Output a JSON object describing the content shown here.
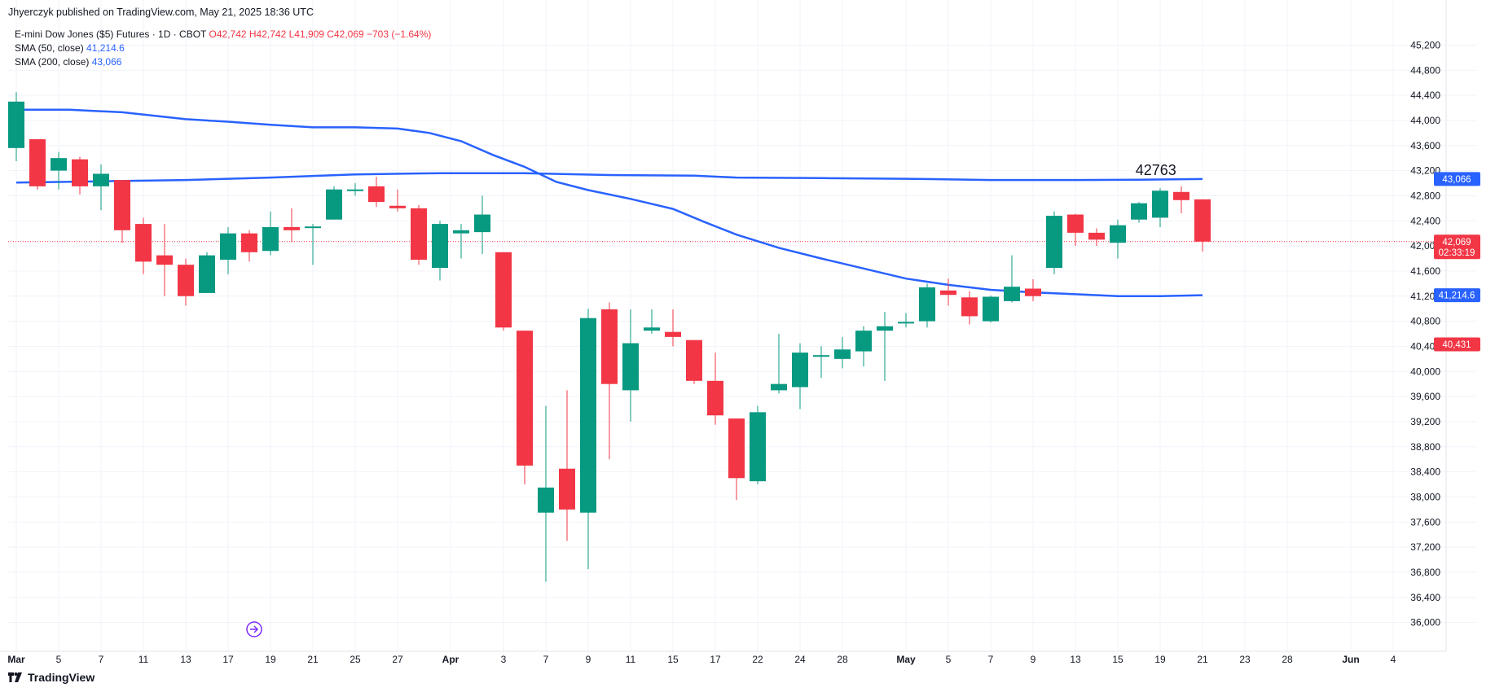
{
  "header": {
    "published_line": "Jhyerczyk published on TradingView.com, May 21, 2025 18:36 UTC"
  },
  "legend": {
    "symbol": "E-mini Dow Jones ($5) Futures · 1D · CBOT",
    "ohlc": "O42,742 H42,742 L41,909 C42,069 −703 (−1.64%)",
    "sma50_label": "SMA (50, close)",
    "sma50_value": "41,214.6",
    "sma200_label": "SMA (200, close)",
    "sma200_value": "43,066"
  },
  "footer": {
    "brand": "TradingView"
  },
  "colors": {
    "up": "#089981",
    "down": "#f23645",
    "sma": "#2962ff",
    "grid": "#f0f3fa",
    "axis_text": "#131722"
  },
  "chart_data": {
    "type": "candlestick",
    "title": "E-mini Dow Jones ($5) Futures · 1D · CBOT",
    "ylim": [
      35800,
      45400
    ],
    "y_ticks": [
      36000,
      36400,
      36800,
      37200,
      37600,
      38000,
      38400,
      38800,
      39200,
      39600,
      40000,
      40400,
      40800,
      41200,
      41600,
      42000,
      42400,
      42800,
      43200,
      43600,
      44000,
      44400,
      44800,
      45200
    ],
    "y_tick_labels": [
      "36,000",
      "36,400",
      "36,800",
      "37,200",
      "37,600",
      "38,000",
      "38,400",
      "38,800",
      "39,200",
      "39,600",
      "40,000",
      "40,400",
      "40,800",
      "41,200",
      "41,600",
      "42,000",
      "42,400",
      "42,800",
      "43,200",
      "43,600",
      "44,000",
      "44,400",
      "44,800",
      "45,200"
    ],
    "x_ticks": [
      {
        "label": "Mar",
        "bar": 0,
        "bold": true
      },
      {
        "label": "5",
        "bar": 2
      },
      {
        "label": "7",
        "bar": 4
      },
      {
        "label": "11",
        "bar": 6
      },
      {
        "label": "13",
        "bar": 8
      },
      {
        "label": "17",
        "bar": 10
      },
      {
        "label": "19",
        "bar": 12
      },
      {
        "label": "21",
        "bar": 14
      },
      {
        "label": "25",
        "bar": 16
      },
      {
        "label": "27",
        "bar": 18
      },
      {
        "label": "Apr",
        "bar": 20.5,
        "bold": true
      },
      {
        "label": "3",
        "bar": 23
      },
      {
        "label": "7",
        "bar": 25
      },
      {
        "label": "9",
        "bar": 27
      },
      {
        "label": "11",
        "bar": 29
      },
      {
        "label": "15",
        "bar": 31
      },
      {
        "label": "17",
        "bar": 33
      },
      {
        "label": "22",
        "bar": 35
      },
      {
        "label": "24",
        "bar": 37
      },
      {
        "label": "28",
        "bar": 39
      },
      {
        "label": "May",
        "bar": 42,
        "bold": true
      },
      {
        "label": "5",
        "bar": 44
      },
      {
        "label": "7",
        "bar": 46
      },
      {
        "label": "9",
        "bar": 48
      },
      {
        "label": "13",
        "bar": 50
      },
      {
        "label": "15",
        "bar": 52
      },
      {
        "label": "19",
        "bar": 54
      },
      {
        "label": "21",
        "bar": 56
      },
      {
        "label": "23",
        "bar": 58
      },
      {
        "label": "28",
        "bar": 60
      },
      {
        "label": "Jun",
        "bar": 63,
        "bold": true
      },
      {
        "label": "4",
        "bar": 65
      }
    ],
    "candles": [
      {
        "o": 43560,
        "h": 44450,
        "l": 43350,
        "c": 44300
      },
      {
        "o": 43700,
        "h": 43700,
        "l": 42900,
        "c": 42950
      },
      {
        "o": 43200,
        "h": 43500,
        "l": 42900,
        "c": 43400
      },
      {
        "o": 43380,
        "h": 43420,
        "l": 42820,
        "c": 42950
      },
      {
        "o": 42950,
        "h": 43300,
        "l": 42570,
        "c": 43150
      },
      {
        "o": 43050,
        "h": 43050,
        "l": 42050,
        "c": 42250
      },
      {
        "o": 42350,
        "h": 42450,
        "l": 41550,
        "c": 41750
      },
      {
        "o": 41850,
        "h": 42350,
        "l": 41200,
        "c": 41700
      },
      {
        "o": 41700,
        "h": 41800,
        "l": 41050,
        "c": 41200
      },
      {
        "o": 41250,
        "h": 41900,
        "l": 41250,
        "c": 41850
      },
      {
        "o": 41780,
        "h": 42300,
        "l": 41550,
        "c": 42200
      },
      {
        "o": 42200,
        "h": 42250,
        "l": 41750,
        "c": 41900
      },
      {
        "o": 41920,
        "h": 42550,
        "l": 41850,
        "c": 42300
      },
      {
        "o": 42300,
        "h": 42600,
        "l": 42060,
        "c": 42250
      },
      {
        "o": 42300,
        "h": 42350,
        "l": 41700,
        "c": 42310
      },
      {
        "o": 42420,
        "h": 42950,
        "l": 42420,
        "c": 42900
      },
      {
        "o": 42890,
        "h": 43000,
        "l": 42800,
        "c": 42900
      },
      {
        "o": 42950,
        "h": 43100,
        "l": 42620,
        "c": 42700
      },
      {
        "o": 42640,
        "h": 42900,
        "l": 42550,
        "c": 42600
      },
      {
        "o": 42600,
        "h": 42650,
        "l": 41700,
        "c": 41780
      },
      {
        "o": 41650,
        "h": 42400,
        "l": 41450,
        "c": 42350
      },
      {
        "o": 42200,
        "h": 42350,
        "l": 41800,
        "c": 42250
      },
      {
        "o": 42220,
        "h": 42800,
        "l": 41870,
        "c": 42500
      },
      {
        "o": 41900,
        "h": 41900,
        "l": 40650,
        "c": 40700
      },
      {
        "o": 40650,
        "h": 40650,
        "l": 38200,
        "c": 38500
      },
      {
        "o": 37750,
        "h": 39450,
        "l": 36650,
        "c": 38150
      },
      {
        "o": 38450,
        "h": 39700,
        "l": 37300,
        "c": 37800
      },
      {
        "o": 37750,
        "h": 41000,
        "l": 36850,
        "c": 40850
      },
      {
        "o": 40990,
        "h": 41100,
        "l": 38600,
        "c": 39800
      },
      {
        "o": 39700,
        "h": 40990,
        "l": 39200,
        "c": 40450
      },
      {
        "o": 40650,
        "h": 40990,
        "l": 40600,
        "c": 40700
      },
      {
        "o": 40630,
        "h": 40990,
        "l": 40400,
        "c": 40550
      },
      {
        "o": 40500,
        "h": 40500,
        "l": 39800,
        "c": 39850
      },
      {
        "o": 39850,
        "h": 40300,
        "l": 39150,
        "c": 39300
      },
      {
        "o": 39250,
        "h": 39250,
        "l": 37950,
        "c": 38300
      },
      {
        "o": 38250,
        "h": 39450,
        "l": 38200,
        "c": 39350
      },
      {
        "o": 39700,
        "h": 40600,
        "l": 39650,
        "c": 39800
      },
      {
        "o": 39750,
        "h": 40450,
        "l": 39400,
        "c": 40300
      },
      {
        "o": 40250,
        "h": 40400,
        "l": 39900,
        "c": 40260
      },
      {
        "o": 40200,
        "h": 40550,
        "l": 40050,
        "c": 40350
      },
      {
        "o": 40320,
        "h": 40720,
        "l": 40080,
        "c": 40650
      },
      {
        "o": 40650,
        "h": 40950,
        "l": 39850,
        "c": 40720
      },
      {
        "o": 40770,
        "h": 40930,
        "l": 40700,
        "c": 40790
      },
      {
        "o": 40800,
        "h": 41400,
        "l": 40700,
        "c": 41340
      },
      {
        "o": 41290,
        "h": 41480,
        "l": 41050,
        "c": 41220
      },
      {
        "o": 41180,
        "h": 41280,
        "l": 40750,
        "c": 40880
      },
      {
        "o": 40800,
        "h": 41210,
        "l": 40780,
        "c": 41190
      },
      {
        "o": 41120,
        "h": 41850,
        "l": 41100,
        "c": 41350
      },
      {
        "o": 41320,
        "h": 41470,
        "l": 41120,
        "c": 41200
      },
      {
        "o": 41650,
        "h": 42550,
        "l": 41550,
        "c": 42480
      },
      {
        "o": 42500,
        "h": 42510,
        "l": 42000,
        "c": 42210
      },
      {
        "o": 42210,
        "h": 42280,
        "l": 42000,
        "c": 42100
      },
      {
        "o": 42050,
        "h": 42420,
        "l": 41800,
        "c": 42330
      },
      {
        "o": 42420,
        "h": 42700,
        "l": 42370,
        "c": 42680
      },
      {
        "o": 42450,
        "h": 42920,
        "l": 42300,
        "c": 42880
      },
      {
        "o": 42860,
        "h": 42950,
        "l": 42520,
        "c": 42730
      },
      {
        "o": 42742,
        "h": 42742,
        "l": 41909,
        "c": 42069
      }
    ],
    "sma50": [
      {
        "bar": 0,
        "v": 44170
      },
      {
        "bar": 2.5,
        "v": 44170
      },
      {
        "bar": 5,
        "v": 44130
      },
      {
        "bar": 8,
        "v": 44020
      },
      {
        "bar": 10,
        "v": 43980
      },
      {
        "bar": 12,
        "v": 43930
      },
      {
        "bar": 14,
        "v": 43890
      },
      {
        "bar": 16,
        "v": 43890
      },
      {
        "bar": 18,
        "v": 43870
      },
      {
        "bar": 19.5,
        "v": 43800
      },
      {
        "bar": 21,
        "v": 43670
      },
      {
        "bar": 22.5,
        "v": 43450
      },
      {
        "bar": 24,
        "v": 43260
      },
      {
        "bar": 25.5,
        "v": 43020
      },
      {
        "bar": 27,
        "v": 42890
      },
      {
        "bar": 29,
        "v": 42750
      },
      {
        "bar": 31,
        "v": 42590
      },
      {
        "bar": 32.5,
        "v": 42380
      },
      {
        "bar": 34,
        "v": 42180
      },
      {
        "bar": 36,
        "v": 41970
      },
      {
        "bar": 38,
        "v": 41800
      },
      {
        "bar": 40,
        "v": 41640
      },
      {
        "bar": 42,
        "v": 41480
      },
      {
        "bar": 44,
        "v": 41380
      },
      {
        "bar": 46,
        "v": 41300
      },
      {
        "bar": 48,
        "v": 41260
      },
      {
        "bar": 50,
        "v": 41230
      },
      {
        "bar": 52,
        "v": 41200
      },
      {
        "bar": 54,
        "v": 41200
      },
      {
        "bar": 56,
        "v": 41215
      }
    ],
    "sma200": [
      {
        "bar": 0,
        "v": 43010
      },
      {
        "bar": 4,
        "v": 43030
      },
      {
        "bar": 8,
        "v": 43050
      },
      {
        "bar": 12,
        "v": 43090
      },
      {
        "bar": 16,
        "v": 43140
      },
      {
        "bar": 20,
        "v": 43160
      },
      {
        "bar": 24,
        "v": 43160
      },
      {
        "bar": 28,
        "v": 43130
      },
      {
        "bar": 32,
        "v": 43120
      },
      {
        "bar": 34,
        "v": 43090
      },
      {
        "bar": 38,
        "v": 43080
      },
      {
        "bar": 42,
        "v": 43070
      },
      {
        "bar": 46,
        "v": 43050
      },
      {
        "bar": 50,
        "v": 43050
      },
      {
        "bar": 53,
        "v": 43055
      },
      {
        "bar": 56,
        "v": 43066
      }
    ],
    "annotation": {
      "text": "42763",
      "bar": 53.8,
      "price": 43210
    },
    "price_line": 42069,
    "price_labels": [
      {
        "text": "45,200",
        "price": 45200,
        "kind": "tick"
      },
      {
        "text": "43,066",
        "price": 43066,
        "kind": "sma200"
      },
      {
        "text": "42,069",
        "price": 42069,
        "kind": "last",
        "sub": "02:33:19"
      },
      {
        "text": "41,214.6",
        "price": 41214.6,
        "kind": "sma50"
      },
      {
        "text": "40,431",
        "price": 40431,
        "kind": "low"
      }
    ]
  }
}
